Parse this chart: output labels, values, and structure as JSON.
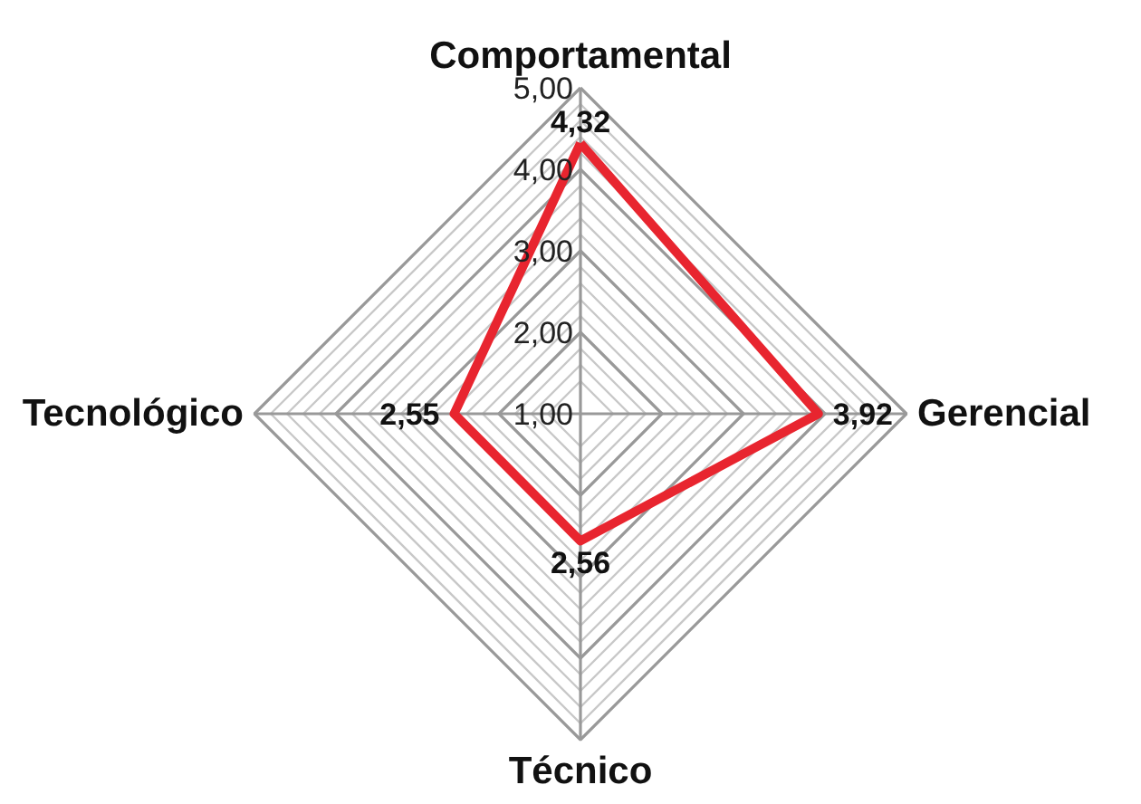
{
  "chart_data": {
    "type": "radar",
    "categories": [
      "Comportamental",
      "Gerencial",
      "Técnico",
      "Tecnológico"
    ],
    "series": [
      {
        "color": "#e8252f",
        "values": [
          4.32,
          3.92,
          2.56,
          2.55
        ],
        "value_labels": [
          "4,32",
          "3,92",
          "2,56",
          "2,55"
        ]
      }
    ],
    "ylim": [
      1,
      5
    ],
    "yticks": [
      {
        "value": 1,
        "label": "1,00"
      },
      {
        "value": 2,
        "label": "2,00"
      },
      {
        "value": 3,
        "label": "3,00"
      },
      {
        "value": 4,
        "label": "4,00"
      },
      {
        "value": 5,
        "label": "5,00"
      }
    ],
    "grid": true
  }
}
